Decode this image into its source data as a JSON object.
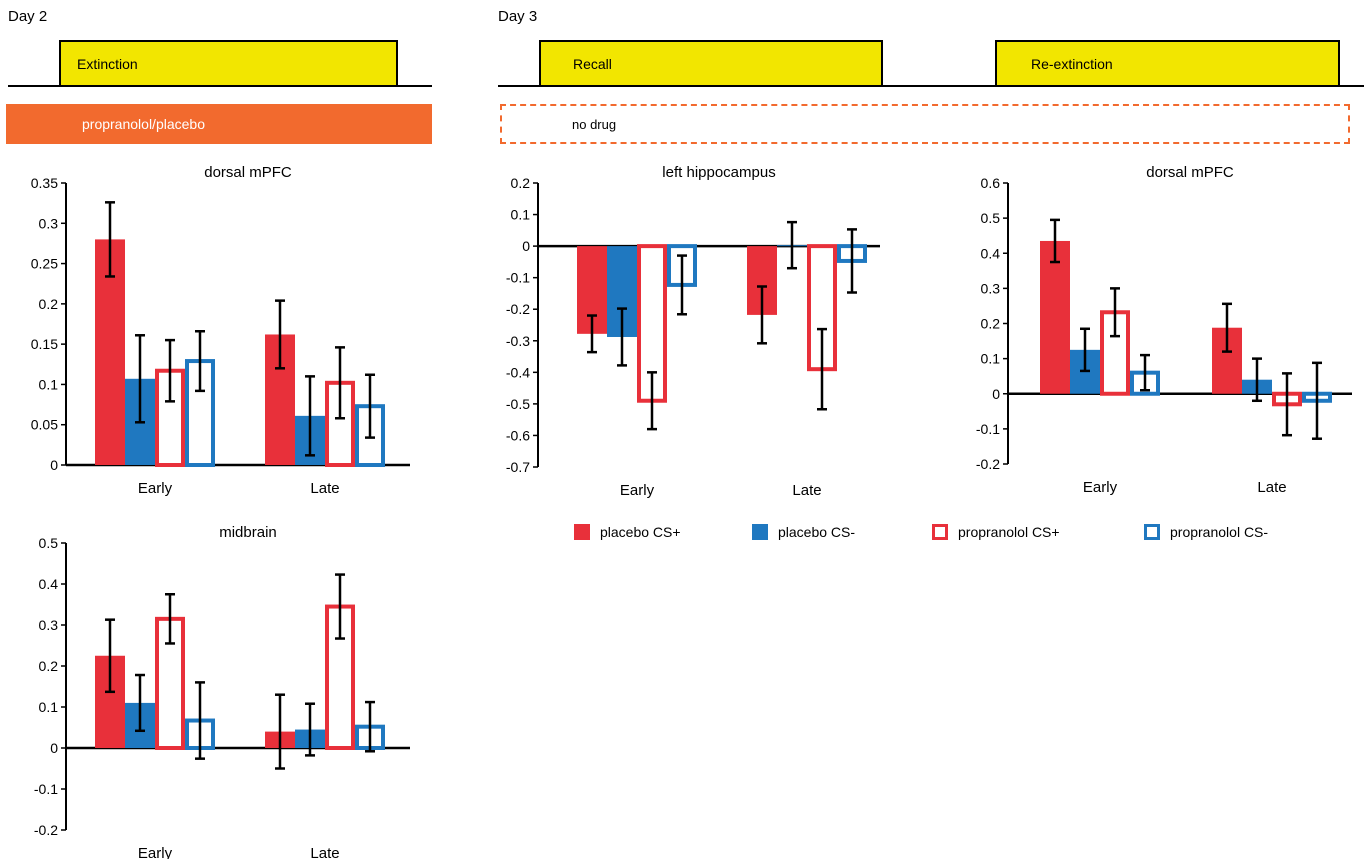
{
  "header": {
    "day2": {
      "label": "Day 2",
      "phases": [
        "Extinction"
      ],
      "drug_label": "propranolol/placebo"
    },
    "day3": {
      "label": "Day 3",
      "phases": [
        "Recall",
        "Re-extinction"
      ],
      "drug_label": "no drug"
    }
  },
  "colors": {
    "red": "#e8303a",
    "blue": "#1f78c0",
    "yellow": "#f2e600",
    "orange": "#f26a2e"
  },
  "legend": [
    {
      "label": "placebo CS+",
      "style": "solid-red"
    },
    {
      "label": "placebo CS-",
      "style": "solid-blue"
    },
    {
      "label": "propranolol CS+",
      "style": "outline-red"
    },
    {
      "label": "propranolol CS-",
      "style": "outline-blue"
    }
  ],
  "chart_data": [
    {
      "id": "d2-dmpfc",
      "type": "bar",
      "title": "dorsal mPFC",
      "categories": [
        "Early",
        "Late"
      ],
      "ylim": [
        0,
        0.35
      ],
      "yticks": [
        "0",
        "0.05",
        "0.1",
        "0.15",
        "0.2",
        "0.25",
        "0.3",
        "0.35"
      ],
      "series": [
        {
          "name": "placebo CS+",
          "values": [
            0.28,
            0.162
          ],
          "errors": [
            0.046,
            0.042
          ]
        },
        {
          "name": "placebo CS-",
          "values": [
            0.107,
            0.061
          ],
          "errors": [
            0.054,
            0.049
          ]
        },
        {
          "name": "propranolol CS+",
          "values": [
            0.117,
            0.102
          ],
          "errors": [
            0.038,
            0.044
          ]
        },
        {
          "name": "propranolol CS-",
          "values": [
            0.129,
            0.073
          ],
          "errors": [
            0.037,
            0.039
          ]
        }
      ]
    },
    {
      "id": "d2-midbrain",
      "type": "bar",
      "title": "midbrain",
      "categories": [
        "Early",
        "Late"
      ],
      "ylim": [
        -0.2,
        0.5
      ],
      "yticks": [
        "-0.2",
        "-0.1",
        "0",
        "0.1",
        "0.2",
        "0.3",
        "0.4",
        "0.5"
      ],
      "series": [
        {
          "name": "placebo CS+",
          "values": [
            0.225,
            0.04
          ],
          "errors": [
            0.088,
            0.09
          ]
        },
        {
          "name": "placebo CS-",
          "values": [
            0.11,
            0.045
          ],
          "errors": [
            0.068,
            0.063
          ]
        },
        {
          "name": "propranolol CS+",
          "values": [
            0.315,
            0.345
          ],
          "errors": [
            0.06,
            0.078
          ]
        },
        {
          "name": "propranolol CS-",
          "values": [
            0.067,
            0.052
          ],
          "errors": [
            0.093,
            0.06
          ]
        }
      ]
    },
    {
      "id": "d3-hippocampus",
      "type": "bar",
      "title": "left hippocampus",
      "categories": [
        "Early",
        "Late"
      ],
      "ylim": [
        -0.7,
        0.2
      ],
      "yticks": [
        "-0.7",
        "-0.6",
        "-0.5",
        "-0.4",
        "-0.3",
        "-0.2",
        "-0.1",
        "0",
        "0.1",
        "0.2"
      ],
      "series": [
        {
          "name": "placebo CS+",
          "values": [
            -0.278,
            -0.218
          ],
          "errors": [
            0.058,
            0.09
          ]
        },
        {
          "name": "placebo CS-",
          "values": [
            -0.288,
            0.003
          ],
          "errors": [
            0.09,
            0.073
          ]
        },
        {
          "name": "propranolol CS+",
          "values": [
            -0.49,
            -0.39
          ],
          "errors": [
            0.09,
            0.127
          ]
        },
        {
          "name": "propranolol CS-",
          "values": [
            -0.123,
            -0.047
          ],
          "errors": [
            0.093,
            0.1
          ]
        }
      ]
    },
    {
      "id": "d3-dmpfc",
      "type": "bar",
      "title": "dorsal mPFC",
      "categories": [
        "Early",
        "Late"
      ],
      "ylim": [
        -0.2,
        0.6
      ],
      "yticks": [
        "-0.2",
        "-0.1",
        "0",
        "0.1",
        "0.2",
        "0.3",
        "0.4",
        "0.5",
        "0.6"
      ],
      "series": [
        {
          "name": "placebo CS+",
          "values": [
            0.435,
            0.188
          ],
          "errors": [
            0.06,
            0.068
          ]
        },
        {
          "name": "placebo CS-",
          "values": [
            0.125,
            0.04
          ],
          "errors": [
            0.06,
            0.06
          ]
        },
        {
          "name": "propranolol CS+",
          "values": [
            0.232,
            -0.03
          ],
          "errors": [
            0.068,
            0.088
          ]
        },
        {
          "name": "propranolol CS-",
          "values": [
            0.06,
            -0.02
          ],
          "errors": [
            0.05,
            0.108
          ]
        }
      ]
    }
  ]
}
